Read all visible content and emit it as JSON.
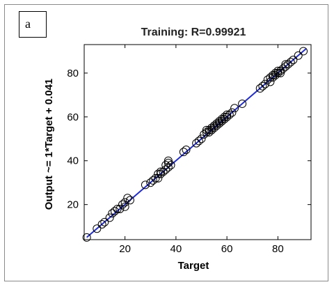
{
  "panel_label": "a",
  "chart_data": {
    "type": "scatter",
    "title": "Training: R=0.99921",
    "xlabel": "Target",
    "ylabel": "Output ~= 1*Target + 0.041",
    "xlim": [
      4,
      93
    ],
    "ylim": [
      4,
      93
    ],
    "xticks": [
      20,
      40,
      60,
      80
    ],
    "yticks": [
      20,
      40,
      60,
      80
    ],
    "grid": false,
    "colors": {
      "fit_line": "#1f2bd6",
      "markers": "#000000",
      "axes": "#000000"
    },
    "fit_line": {
      "slope": 1,
      "intercept": 0.041,
      "x_range": [
        5,
        91
      ]
    },
    "points": [
      [
        5,
        5
      ],
      [
        9,
        9
      ],
      [
        11,
        11
      ],
      [
        12,
        12
      ],
      [
        14,
        14
      ],
      [
        15,
        16
      ],
      [
        16,
        17
      ],
      [
        17,
        18
      ],
      [
        18,
        18
      ],
      [
        19,
        20
      ],
      [
        20,
        19
      ],
      [
        20,
        21
      ],
      [
        21,
        23
      ],
      [
        22,
        22
      ],
      [
        28,
        29
      ],
      [
        30,
        30
      ],
      [
        31,
        31
      ],
      [
        32,
        32
      ],
      [
        33,
        32
      ],
      [
        33,
        34
      ],
      [
        34,
        34
      ],
      [
        34,
        35
      ],
      [
        35,
        35
      ],
      [
        36,
        36
      ],
      [
        36,
        38
      ],
      [
        37,
        37
      ],
      [
        37,
        39
      ],
      [
        37,
        40
      ],
      [
        38,
        38
      ],
      [
        43,
        44
      ],
      [
        44,
        45
      ],
      [
        48,
        48
      ],
      [
        49,
        49
      ],
      [
        50,
        50
      ],
      [
        51,
        52
      ],
      [
        52,
        53
      ],
      [
        52,
        54
      ],
      [
        53,
        53
      ],
      [
        53,
        54
      ],
      [
        54,
        54
      ],
      [
        54,
        55
      ],
      [
        55,
        55
      ],
      [
        55,
        56
      ],
      [
        56,
        56
      ],
      [
        56,
        57
      ],
      [
        57,
        57
      ],
      [
        57,
        58
      ],
      [
        58,
        58
      ],
      [
        58,
        59
      ],
      [
        59,
        59
      ],
      [
        59,
        60
      ],
      [
        60,
        60
      ],
      [
        60,
        61
      ],
      [
        61,
        61
      ],
      [
        62,
        62
      ],
      [
        63,
        64
      ],
      [
        66,
        66
      ],
      [
        73,
        73
      ],
      [
        74,
        74
      ],
      [
        75,
        75
      ],
      [
        76,
        77
      ],
      [
        77,
        76
      ],
      [
        77,
        78
      ],
      [
        78,
        78
      ],
      [
        78,
        79
      ],
      [
        79,
        79
      ],
      [
        79,
        80
      ],
      [
        80,
        80
      ],
      [
        80,
        81
      ],
      [
        81,
        80
      ],
      [
        81,
        81
      ],
      [
        82,
        82
      ],
      [
        83,
        83
      ],
      [
        83,
        84
      ],
      [
        84,
        84
      ],
      [
        85,
        85
      ],
      [
        86,
        86
      ],
      [
        88,
        88
      ],
      [
        90,
        90
      ]
    ]
  }
}
